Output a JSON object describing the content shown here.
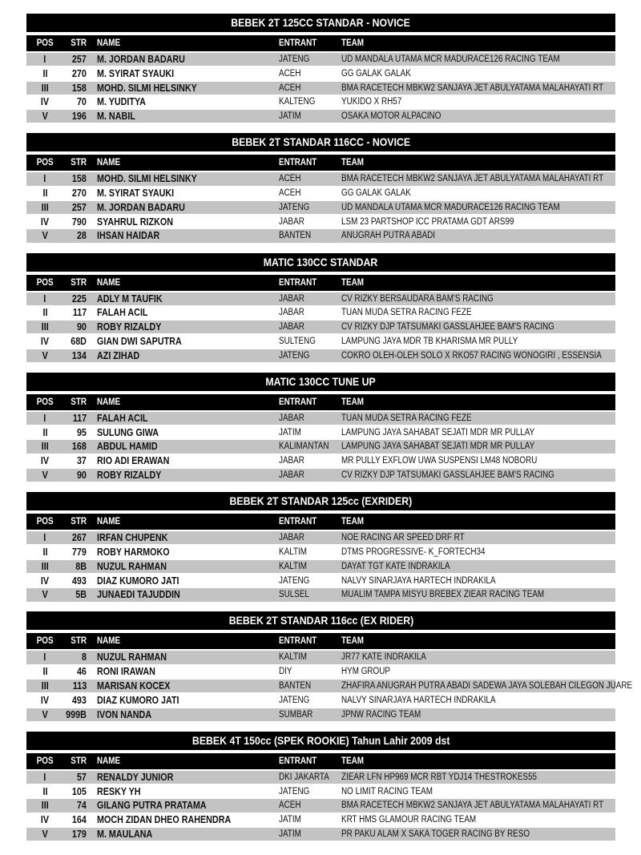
{
  "columns": {
    "pos": "POS",
    "str": "STR",
    "name": "NAME",
    "entrant": "ENTRANT",
    "team": "TEAM"
  },
  "colors": {
    "title_bar": "#000000",
    "row_alt": "#c3c3c3"
  },
  "sections": [
    {
      "title": "BEBEK 2T 125CC STANDAR - NOVICE",
      "rows": [
        {
          "pos": "I",
          "str": "257",
          "name": "M. JORDAN BADARU",
          "entrant": "JATENG",
          "team": "UD MANDALA UTAMA MCR MADURACE126 RACING TEAM"
        },
        {
          "pos": "II",
          "str": "270",
          "name": "M. SYIRAT SYAUKI",
          "entrant": "ACEH",
          "team": "GG GALAK GALAK"
        },
        {
          "pos": "III",
          "str": "158",
          "name": "MOHD. SILMI HELSINKY",
          "entrant": "ACEH",
          "team": "BMA RACETECH MBKW2 SANJAYA JET ABULYATAMA MALAHAYATI RT"
        },
        {
          "pos": "IV",
          "str": "70",
          "name": "M. YUDITYA",
          "entrant": "KALTENG",
          "team": "YUKIDO X RH57"
        },
        {
          "pos": "V",
          "str": "196",
          "name": "M. NABIL",
          "entrant": "JATIM",
          "team": "OSAKA MOTOR ALPACINO"
        }
      ]
    },
    {
      "title": "BEBEK 2T STANDAR 116CC - NOVICE",
      "rows": [
        {
          "pos": "I",
          "str": "158",
          "name": "MOHD. SILMI HELSINKY",
          "entrant": "ACEH",
          "team": "BMA RACETECH MBKW2 SANJAYA JET ABULYATAMA MALAHAYATI RT"
        },
        {
          "pos": "II",
          "str": "270",
          "name": "M. SYIRAT SYAUKI",
          "entrant": "ACEH",
          "team": "GG GALAK GALAK"
        },
        {
          "pos": "III",
          "str": "257",
          "name": "M. JORDAN BADARU",
          "entrant": "JATENG",
          "team": "UD MANDALA UTAMA MCR MADURACE126 RACING TEAM"
        },
        {
          "pos": "IV",
          "str": "790",
          "name": "SYAHRUL RIZKON",
          "entrant": "JABAR",
          "team": "LSM 23 PARTSHOP ICC PRATAMA GDT ARS99"
        },
        {
          "pos": "V",
          "str": "28",
          "name": "IHSAN HAIDAR",
          "entrant": "BANTEN",
          "team": "ANUGRAH PUTRA ABADI"
        }
      ]
    },
    {
      "title": "MATIC 130CC STANDAR",
      "rows": [
        {
          "pos": "I",
          "str": "225",
          "name": "ADLY M TAUFIK",
          "entrant": "JABAR",
          "team": "CV RIZKY BERSAUDARA BAM'S RACING"
        },
        {
          "pos": "II",
          "str": "117",
          "name": "FALAH ACIL",
          "entrant": "JABAR",
          "team": "TUAN MUDA SETRA RACING FEZE"
        },
        {
          "pos": "III",
          "str": "90",
          "name": "ROBY RIZALDY",
          "entrant": "JABAR",
          "team": "CV RIZKY  DJP TATSUMAKI GASSLAHJEE BAM'S RACING"
        },
        {
          "pos": "IV",
          "str": "68D",
          "name": "GIAN DWI SAPUTRA",
          "entrant": "SULTENG",
          "team": "LAMPUNG JAYA MDR TB KHARISMA MR PULLY"
        },
        {
          "pos": "V",
          "str": "134",
          "name": "AZI ZIHAD",
          "entrant": "JATENG",
          "team": "COKRO OLEH-OLEH SOLO X RKO57 RACING WONOGIRI , ESSENSIA"
        }
      ]
    },
    {
      "title": "MATIC 130CC TUNE UP",
      "rows": [
        {
          "pos": "I",
          "str": "117",
          "name": "FALAH ACIL",
          "entrant": "JABAR",
          "team": "TUAN MUDA SETRA RACING FEZE"
        },
        {
          "pos": "II",
          "str": "95",
          "name": "SULUNG GIWA",
          "entrant": "JATIM",
          "team": "LAMPUNG JAYA SAHABAT SEJATI MDR MR PULLAY"
        },
        {
          "pos": "III",
          "str": "168",
          "name": "ABDUL HAMID",
          "entrant": "KALIMANTAN",
          "team": "LAMPUNG JAYA SAHABAT SEJATI MDR MR PULLAY"
        },
        {
          "pos": "IV",
          "str": "37",
          "name": "RIO ADI ERAWAN",
          "entrant": "JABAR",
          "team": "MR PULLY EXFLOW UWA SUSPENSI LM48 NOBORU"
        },
        {
          "pos": "V",
          "str": "90",
          "name": "ROBY RIZALDY",
          "entrant": "JABAR",
          "team": "CV RIZKY  DJP TATSUMAKI GASSLAHJEE BAM'S RACING"
        }
      ]
    },
    {
      "title": "BEBEK 2T STANDAR 125cc (EXRIDER)",
      "rows": [
        {
          "pos": "I",
          "str": "267",
          "name": "IRFAN CHUPENK",
          "entrant": "JABAR",
          "team": "NOE RACING AR SPEED DRF RT"
        },
        {
          "pos": "II",
          "str": "779",
          "name": "ROBY HARMOKO",
          "entrant": "KALTIM",
          "team": "DTMS PROGRESSIVE- K_FORTECH34"
        },
        {
          "pos": "III",
          "str": "8B",
          "name": "NUZUL RAHMAN",
          "entrant": "KALTIM",
          "team": "DAYAT TGT KATE INDRAKILA"
        },
        {
          "pos": "IV",
          "str": "493",
          "name": "DIAZ KUMORO JATI",
          "entrant": "JATENG",
          "team": "NALVY SINARJAYA HARTECH INDRAKILA"
        },
        {
          "pos": "V",
          "str": "5B",
          "name": "JUNAEDI TAJUDDIN",
          "entrant": "SULSEL",
          "team": "MUALIM TAMPA MISYU BREBEX ZIEAR RACING TEAM"
        }
      ]
    },
    {
      "title": "BEBEK 2T STANDAR 116cc (EX RIDER)",
      "rows": [
        {
          "pos": "I",
          "str": "8",
          "name": "NUZUL RAHMAN",
          "entrant": "KALTIM",
          "team": "JR77 KATE INDRAKILA"
        },
        {
          "pos": "II",
          "str": "46",
          "name": "RONI IRAWAN",
          "entrant": "DIY",
          "team": "HYM GROUP"
        },
        {
          "pos": "III",
          "str": "113",
          "name": "MARISAN KOCEX",
          "entrant": "BANTEN",
          "team": "ZHAFIRA ANUGRAH PUTRA ABADI SADEWA JAYA SOLEBAH CILEGON JUARE"
        },
        {
          "pos": "IV",
          "str": "493",
          "name": "DIAZ KUMORO JATI",
          "entrant": "JATENG",
          "team": "NALVY SINARJAYA HARTECH INDRAKILA"
        },
        {
          "pos": "V",
          "str": "999B",
          "name": "IVON NANDA",
          "entrant": "SUMBAR",
          "team": "JPNW RACING TEAM"
        }
      ]
    },
    {
      "title": "BEBEK 4T 150cc (SPEK ROOKIE) Tahun Lahir 2009 dst",
      "rows": [
        {
          "pos": "I",
          "str": "57",
          "name": "RENALDY JUNIOR",
          "entrant": "DKI JAKARTA",
          "team": "ZIEAR LFN HP969 MCR RBT YDJ14 THESTROKES55"
        },
        {
          "pos": "II",
          "str": "105",
          "name": "RESKY YH",
          "entrant": "JATENG",
          "team": "NO LIMIT RACING TEAM"
        },
        {
          "pos": "III",
          "str": "74",
          "name": "GILANG PUTRA PRATAMA",
          "entrant": "ACEH",
          "team": "BMA RACETECH MBKW2 SANJAYA JET ABULYATAMA MALAHAYATI RT"
        },
        {
          "pos": "IV",
          "str": "164",
          "name": "MOCH ZIDAN DHEO RAHENDRA",
          "entrant": "JATIM",
          "team": "KRT HMS GLAMOUR RACING TEAM"
        },
        {
          "pos": "V",
          "str": "179",
          "name": "M. MAULANA",
          "entrant": "JATIM",
          "team": "PR PAKU ALAM X SAKA TOGER RACING BY RESO"
        }
      ]
    }
  ]
}
